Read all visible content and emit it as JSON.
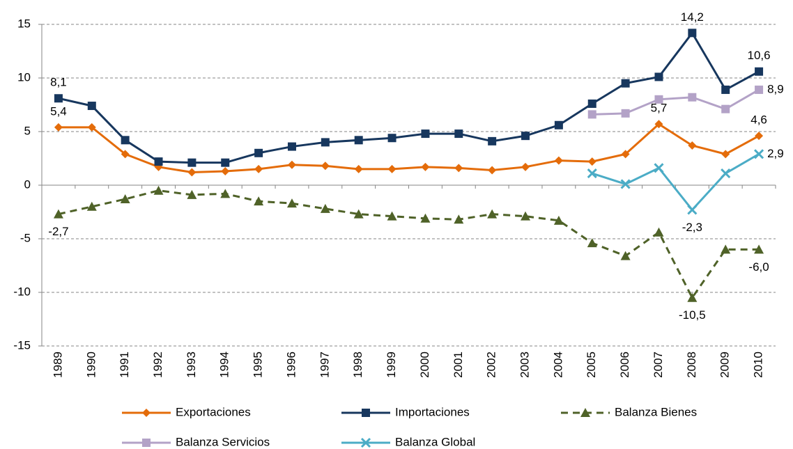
{
  "chart_data": {
    "type": "line",
    "categories": [
      "1989",
      "1990",
      "1991",
      "1992",
      "1993",
      "1994",
      "1995",
      "1996",
      "1997",
      "1998",
      "1999",
      "2000",
      "2001",
      "2002",
      "2003",
      "2004",
      "2005",
      "2006",
      "2007",
      "2008",
      "2009",
      "2010"
    ],
    "ylim": [
      -15,
      15
    ],
    "yticks": [
      -15,
      -10,
      -5,
      0,
      5,
      10,
      15
    ],
    "grid": true,
    "legend": "bottom",
    "series": [
      {
        "name": "Exportaciones",
        "color": "#e46c0a",
        "marker": "diamond",
        "dashed": false,
        "values": [
          5.4,
          5.4,
          2.9,
          1.7,
          1.2,
          1.3,
          1.5,
          1.9,
          1.8,
          1.5,
          1.5,
          1.7,
          1.6,
          1.4,
          1.7,
          2.3,
          2.2,
          2.9,
          5.7,
          3.7,
          2.9,
          4.6
        ],
        "value_labels": [
          "5,4",
          null,
          null,
          null,
          null,
          null,
          null,
          null,
          null,
          null,
          null,
          null,
          null,
          null,
          null,
          null,
          null,
          null,
          "5,7",
          null,
          null,
          "4,6"
        ]
      },
      {
        "name": "Importaciones",
        "color": "#17375e",
        "marker": "square",
        "dashed": false,
        "values": [
          8.1,
          7.4,
          4.2,
          2.2,
          2.1,
          2.1,
          3.0,
          3.6,
          4.0,
          4.2,
          4.4,
          4.8,
          4.8,
          4.1,
          4.6,
          5.6,
          7.6,
          9.5,
          10.1,
          14.2,
          8.9,
          10.6
        ],
        "value_labels": [
          "8,1",
          null,
          null,
          null,
          null,
          null,
          null,
          null,
          null,
          null,
          null,
          null,
          null,
          null,
          null,
          null,
          null,
          null,
          null,
          "14,2",
          null,
          "10,6"
        ]
      },
      {
        "name": "Balanza Bienes",
        "color": "#4f6228",
        "marker": "triangle",
        "dashed": true,
        "values": [
          -2.7,
          -2.0,
          -1.3,
          -0.5,
          -0.9,
          -0.8,
          -1.5,
          -1.7,
          -2.2,
          -2.7,
          -2.9,
          -3.1,
          -3.2,
          -2.7,
          -2.9,
          -3.3,
          -5.4,
          -6.6,
          -4.4,
          -10.5,
          -6.0,
          -6.0
        ],
        "value_labels": [
          "-2,7",
          null,
          null,
          null,
          null,
          null,
          null,
          null,
          null,
          null,
          null,
          null,
          null,
          null,
          null,
          null,
          null,
          null,
          null,
          "-10,5",
          null,
          "-6,0"
        ]
      },
      {
        "name": "Balanza Servicios",
        "color": "#b3a2c7",
        "marker": "square",
        "dashed": false,
        "values": [
          null,
          null,
          null,
          null,
          null,
          null,
          null,
          null,
          null,
          null,
          null,
          null,
          null,
          null,
          null,
          null,
          6.6,
          6.7,
          8.0,
          8.2,
          7.1,
          8.9
        ],
        "value_labels": [
          null,
          null,
          null,
          null,
          null,
          null,
          null,
          null,
          null,
          null,
          null,
          null,
          null,
          null,
          null,
          null,
          null,
          null,
          null,
          null,
          null,
          "8,9"
        ]
      },
      {
        "name": "Balanza Global",
        "color": "#4bacc6",
        "marker": "x",
        "dashed": false,
        "values": [
          null,
          null,
          null,
          null,
          null,
          null,
          null,
          null,
          null,
          null,
          null,
          null,
          null,
          null,
          null,
          null,
          1.1,
          0.1,
          1.6,
          -2.3,
          1.1,
          2.9
        ],
        "value_labels": [
          null,
          null,
          null,
          null,
          null,
          null,
          null,
          null,
          null,
          null,
          null,
          null,
          null,
          null,
          null,
          null,
          null,
          null,
          null,
          "-2,3",
          null,
          "2,9"
        ]
      }
    ]
  }
}
